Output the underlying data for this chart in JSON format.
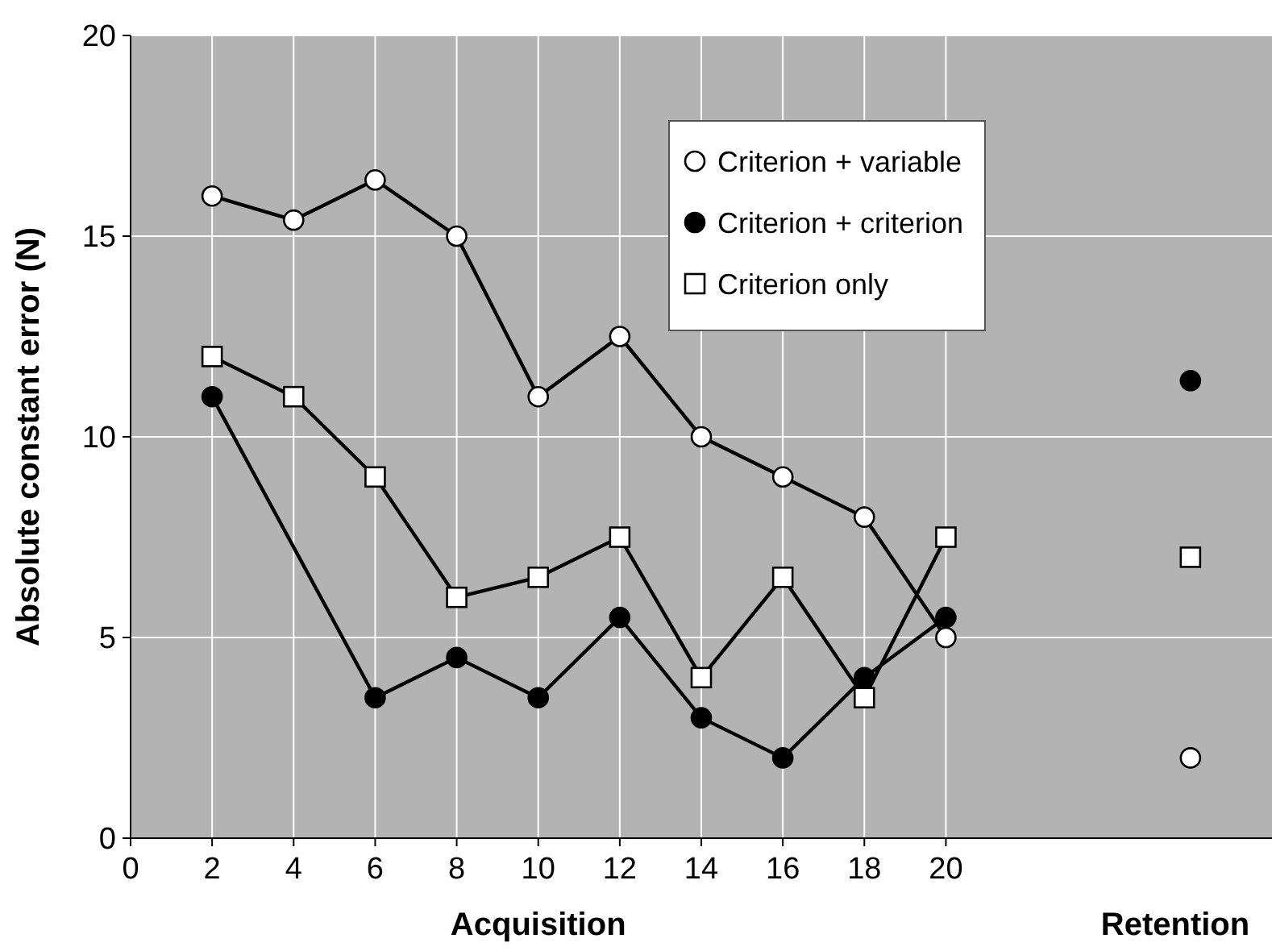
{
  "chart_data": {
    "type": "line",
    "xlabel": "Acquisition",
    "ylabel": "Absolute constant error (N)",
    "x": [
      2,
      4,
      6,
      8,
      10,
      12,
      14,
      16,
      18,
      20,
      22,
      26
    ],
    "series": [
      {
        "name": "Criterion + variable",
        "color": "#ffffff",
        "marker": "circle",
        "values": [
          16.0,
          15.4,
          16.4,
          15.0,
          11.0,
          12.5,
          10.0,
          9.0,
          8.0,
          5.0,
          null,
          2.0
        ]
      },
      {
        "name": "Criterion + criterion",
        "color": "#000000",
        "marker": "circle",
        "x": [
          2,
          6,
          8,
          10,
          12,
          14,
          16,
          18,
          20,
          22,
          26
        ],
        "values": [
          11.0,
          3.5,
          4.5,
          3.5,
          5.5,
          3.0,
          2.0,
          4.0,
          5.5,
          null,
          11.4
        ]
      },
      {
        "name": "Criterion only",
        "color": "#ffffff",
        "marker": "square",
        "values": [
          12.0,
          11.0,
          9.0,
          6.0,
          6.5,
          7.5,
          4.0,
          6.5,
          3.5,
          7.5,
          null,
          7.0
        ]
      }
    ],
    "annotations": [
      "Retention"
    ],
    "xlim": [
      0,
      28
    ],
    "ylim": [
      0,
      20
    ],
    "xticks": [
      0,
      2,
      4,
      6,
      8,
      10,
      12,
      14,
      16,
      18,
      20
    ],
    "yticks": [
      0,
      5,
      10,
      15,
      20
    ],
    "grid": true,
    "legend": "top right"
  }
}
